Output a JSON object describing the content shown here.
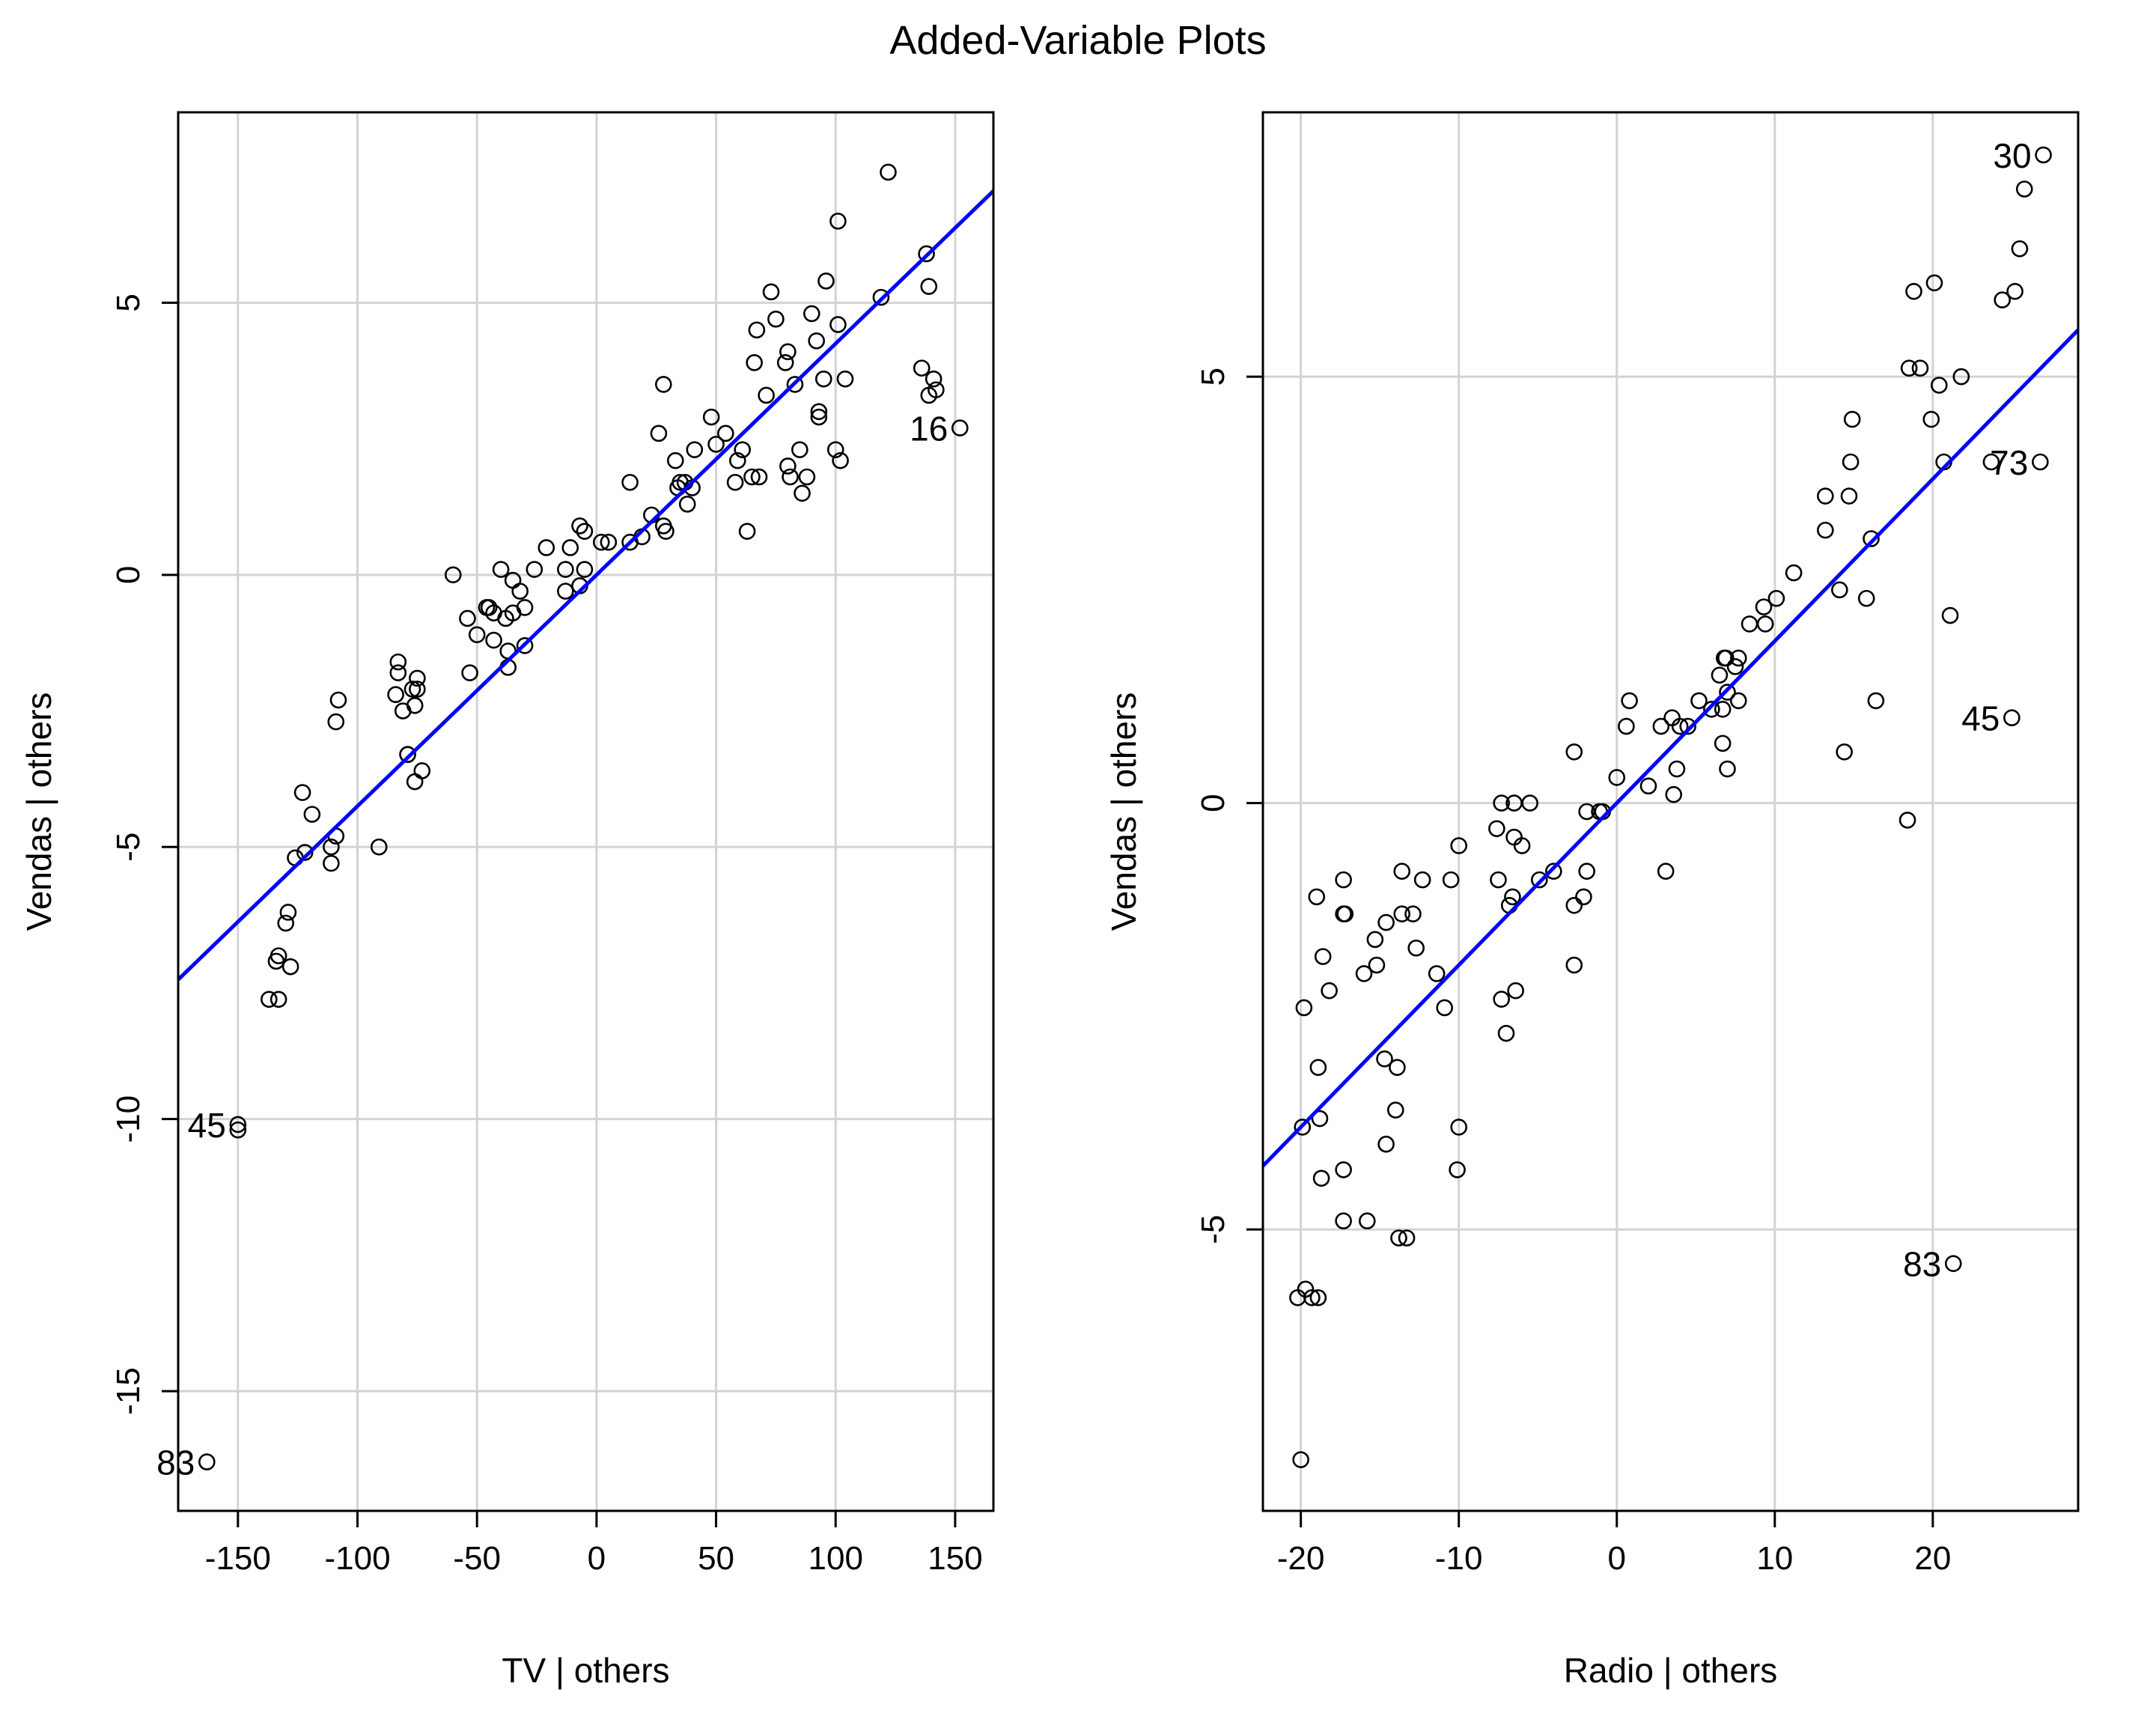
{
  "title": "Added-Variable Plots",
  "colors": {
    "fit_line": "#0000ff",
    "grid": "#d3d3d3",
    "points": "#000000"
  },
  "chart_data": [
    {
      "type": "scatter",
      "xlabel": "TV | others",
      "ylabel": "Vendas  | others",
      "xlim": [
        -175,
        166
      ],
      "ylim": [
        -17.2,
        8.5
      ],
      "xticks": [
        -150,
        -100,
        -50,
        0,
        50,
        100,
        150
      ],
      "yticks": [
        -15,
        -10,
        -5,
        0,
        5
      ],
      "grid": true,
      "fit_line": {
        "intercept": 0.0,
        "slope": 0.0425
      },
      "labeled_points": [
        {
          "label": "83",
          "x": -163,
          "y": -16.3
        },
        {
          "label": "45",
          "x": -150,
          "y": -10.1
        },
        {
          "label": "16",
          "x": 152,
          "y": 2.7
        }
      ],
      "points": [
        [
          -163,
          -16.3
        ],
        [
          -150,
          -10.1
        ],
        [
          -150,
          -10.2
        ],
        [
          -137,
          -7.8
        ],
        [
          -133,
          -7.8
        ],
        [
          -134,
          -7.1
        ],
        [
          -133,
          -7.0
        ],
        [
          -128,
          -7.2
        ],
        [
          -130,
          -6.4
        ],
        [
          -129,
          -6.2
        ],
        [
          -126,
          -5.2
        ],
        [
          -122,
          -5.1
        ],
        [
          -123,
          -4.0
        ],
        [
          -119,
          -4.4
        ],
        [
          -111,
          -5.0
        ],
        [
          -111,
          -5.3
        ],
        [
          -109,
          -4.8
        ],
        [
          -109,
          -2.7
        ],
        [
          -108,
          -2.3
        ],
        [
          -91,
          -5.0
        ],
        [
          -84,
          -2.2
        ],
        [
          -83,
          -1.6
        ],
        [
          -83,
          -1.8
        ],
        [
          -81,
          -2.5
        ],
        [
          -79,
          -3.3
        ],
        [
          -79,
          -3.3
        ],
        [
          -77,
          -2.1
        ],
        [
          -76,
          -2.4
        ],
        [
          -75,
          -1.9
        ],
        [
          -75,
          -2.1
        ],
        [
          -73,
          -3.6
        ],
        [
          -76,
          -3.8
        ],
        [
          -60,
          0.0
        ],
        [
          -54,
          -0.8
        ],
        [
          -53,
          -1.8
        ],
        [
          -50,
          -1.1
        ],
        [
          -46,
          -0.6
        ],
        [
          -45,
          -0.6
        ],
        [
          -43,
          -0.7
        ],
        [
          -43,
          -1.2
        ],
        [
          -40,
          0.1
        ],
        [
          -38,
          -0.8
        ],
        [
          -37,
          -1.4
        ],
        [
          -37,
          -1.7
        ],
        [
          -35,
          -0.7
        ],
        [
          -35,
          -0.1
        ],
        [
          -32,
          -0.3
        ],
        [
          -30,
          -1.3
        ],
        [
          -30,
          -0.6
        ],
        [
          -26,
          0.1
        ],
        [
          -21,
          0.5
        ],
        [
          -13,
          0.1
        ],
        [
          -13,
          -0.3
        ],
        [
          -11,
          0.5
        ],
        [
          -7,
          0.9
        ],
        [
          -7,
          -0.2
        ],
        [
          -5,
          0.8
        ],
        [
          -5,
          0.1
        ],
        [
          2,
          0.6
        ],
        [
          5,
          0.6
        ],
        [
          14,
          1.7
        ],
        [
          14,
          0.6
        ],
        [
          19,
          0.7
        ],
        [
          23,
          1.1
        ],
        [
          26,
          2.6
        ],
        [
          28,
          0.9
        ],
        [
          29,
          0.8
        ],
        [
          28,
          3.5
        ],
        [
          33,
          2.1
        ],
        [
          34,
          1.6
        ],
        [
          35,
          1.7
        ],
        [
          37,
          1.7
        ],
        [
          38,
          1.3
        ],
        [
          40,
          1.6
        ],
        [
          41,
          2.3
        ],
        [
          48,
          2.9
        ],
        [
          50,
          2.4
        ],
        [
          54,
          2.6
        ],
        [
          58,
          1.7
        ],
        [
          59,
          2.1
        ],
        [
          61,
          2.3
        ],
        [
          63,
          0.8
        ],
        [
          65,
          1.8
        ],
        [
          66,
          3.9
        ],
        [
          67,
          4.5
        ],
        [
          68,
          1.8
        ],
        [
          71,
          3.3
        ],
        [
          73,
          5.2
        ],
        [
          75,
          4.7
        ],
        [
          79,
          3.9
        ],
        [
          80,
          4.1
        ],
        [
          80,
          2.0
        ],
        [
          81,
          1.8
        ],
        [
          83,
          3.5
        ],
        [
          85,
          2.3
        ],
        [
          86,
          1.5
        ],
        [
          88,
          1.8
        ],
        [
          90,
          4.8
        ],
        [
          92,
          4.3
        ],
        [
          93,
          3.0
        ],
        [
          93,
          2.9
        ],
        [
          95,
          3.6
        ],
        [
          96,
          5.4
        ],
        [
          100,
          2.3
        ],
        [
          101,
          4.6
        ],
        [
          101,
          6.5
        ],
        [
          102,
          2.1
        ],
        [
          104,
          3.6
        ],
        [
          119,
          5.1
        ],
        [
          122,
          7.4
        ],
        [
          136,
          3.8
        ],
        [
          138,
          5.9
        ],
        [
          139,
          3.3
        ],
        [
          139,
          5.3
        ],
        [
          141,
          3.6
        ],
        [
          142,
          3.4
        ],
        [
          152,
          2.7
        ]
      ]
    },
    {
      "type": "scatter",
      "xlabel": "Radio | others",
      "ylabel": "Vendas  | others",
      "xlim": [
        -22.4,
        29.2
      ],
      "ylim": [
        -8.3,
        8.1
      ],
      "xticks": [
        -20,
        -10,
        0,
        10,
        20
      ],
      "yticks": [
        -5,
        0,
        5
      ],
      "grid": true,
      "fit_line": {
        "intercept": 0.0,
        "slope": 0.19
      },
      "labeled_points": [
        {
          "label": "30",
          "x": 27.0,
          "y": 7.6
        },
        {
          "label": "73",
          "x": 26.8,
          "y": 4.0
        },
        {
          "label": "45",
          "x": 25.0,
          "y": 1.0
        },
        {
          "label": "83",
          "x": 21.3,
          "y": -5.4
        }
      ],
      "points": [
        [
          -20.2,
          -5.8
        ],
        [
          -20.0,
          -7.7
        ],
        [
          -19.9,
          -3.8
        ],
        [
          -19.8,
          -2.4
        ],
        [
          -19.7,
          -5.7
        ],
        [
          -19.3,
          -5.8
        ],
        [
          -18.9,
          -5.8
        ],
        [
          -19.0,
          -1.1
        ],
        [
          -18.9,
          -3.1
        ],
        [
          -18.8,
          -3.7
        ],
        [
          -18.7,
          -4.4
        ],
        [
          -18.6,
          -1.8
        ],
        [
          -18.2,
          -2.2
        ],
        [
          -17.3,
          -4.3
        ],
        [
          -17.3,
          -4.9
        ],
        [
          -17.3,
          -0.9
        ],
        [
          -17.3,
          -1.3
        ],
        [
          -17.2,
          -1.3
        ],
        [
          -16.0,
          -2.0
        ],
        [
          -15.8,
          -4.9
        ],
        [
          -15.3,
          -1.6
        ],
        [
          -15.2,
          -1.9
        ],
        [
          -14.7,
          -3.0
        ],
        [
          -14.6,
          -4.0
        ],
        [
          -14.6,
          -1.4
        ],
        [
          -14.0,
          -3.6
        ],
        [
          -13.9,
          -3.1
        ],
        [
          -13.8,
          -5.1
        ],
        [
          -13.6,
          -1.3
        ],
        [
          -13.6,
          -0.8
        ],
        [
          -13.3,
          -5.1
        ],
        [
          -12.9,
          -1.3
        ],
        [
          -12.7,
          -1.7
        ],
        [
          -12.3,
          -0.9
        ],
        [
          -11.4,
          -2.0
        ],
        [
          -10.9,
          -2.4
        ],
        [
          -10.5,
          -0.9
        ],
        [
          -10.1,
          -4.3
        ],
        [
          -10.0,
          -3.8
        ],
        [
          -10.0,
          -0.5
        ],
        [
          -7.6,
          -0.3
        ],
        [
          -7.5,
          -0.9
        ],
        [
          -7.3,
          -2.3
        ],
        [
          -7.3,
          0.0
        ],
        [
          -7.0,
          -2.7
        ],
        [
          -6.8,
          -1.2
        ],
        [
          -6.6,
          -1.1
        ],
        [
          -6.5,
          0.0
        ],
        [
          -6.5,
          -0.4
        ],
        [
          -6.4,
          -2.2
        ],
        [
          -6.0,
          -0.5
        ],
        [
          -5.5,
          0.0
        ],
        [
          -4.9,
          -0.9
        ],
        [
          -4.0,
          -0.8
        ],
        [
          -2.7,
          -1.9
        ],
        [
          -2.7,
          -1.2
        ],
        [
          -2.7,
          0.6
        ],
        [
          -2.1,
          -1.1
        ],
        [
          -1.9,
          -0.8
        ],
        [
          -1.9,
          -0.1
        ],
        [
          -1.1,
          -0.1
        ],
        [
          -0.9,
          -0.1
        ],
        [
          0.0,
          0.3
        ],
        [
          0.6,
          0.9
        ],
        [
          0.8,
          1.2
        ],
        [
          2.0,
          0.2
        ],
        [
          2.8,
          0.9
        ],
        [
          3.1,
          -0.8
        ],
        [
          3.5,
          1.0
        ],
        [
          3.6,
          0.1
        ],
        [
          3.8,
          0.4
        ],
        [
          4.0,
          0.9
        ],
        [
          4.5,
          0.9
        ],
        [
          5.2,
          1.2
        ],
        [
          6.0,
          1.1
        ],
        [
          6.5,
          1.5
        ],
        [
          6.7,
          1.1
        ],
        [
          6.7,
          0.7
        ],
        [
          6.8,
          1.7
        ],
        [
          6.9,
          1.7
        ],
        [
          7.0,
          1.3
        ],
        [
          7.0,
          0.4
        ],
        [
          7.5,
          1.6
        ],
        [
          7.7,
          1.2
        ],
        [
          7.7,
          1.7
        ],
        [
          8.4,
          2.1
        ],
        [
          9.3,
          2.3
        ],
        [
          9.4,
          2.1
        ],
        [
          10.1,
          2.4
        ],
        [
          11.2,
          2.7
        ],
        [
          13.2,
          3.2
        ],
        [
          13.2,
          3.6
        ],
        [
          14.1,
          2.5
        ],
        [
          14.4,
          0.6
        ],
        [
          14.7,
          3.6
        ],
        [
          14.8,
          4.0
        ],
        [
          14.9,
          4.5
        ],
        [
          15.8,
          2.4
        ],
        [
          16.1,
          3.1
        ],
        [
          16.4,
          1.2
        ],
        [
          18.4,
          -0.2
        ],
        [
          18.5,
          5.1
        ],
        [
          18.8,
          6.0
        ],
        [
          19.2,
          5.1
        ],
        [
          19.9,
          4.5
        ],
        [
          20.1,
          6.1
        ],
        [
          20.4,
          4.9
        ],
        [
          20.7,
          4.0
        ],
        [
          21.1,
          2.2
        ],
        [
          21.8,
          5.0
        ],
        [
          23.7,
          4.0
        ],
        [
          24.4,
          5.9
        ],
        [
          25.2,
          6.0
        ],
        [
          25.5,
          6.5
        ],
        [
          25.8,
          7.2
        ],
        [
          21.3,
          -5.4
        ],
        [
          25.0,
          1.0
        ],
        [
          26.8,
          4.0
        ],
        [
          27.0,
          7.6
        ]
      ]
    }
  ]
}
